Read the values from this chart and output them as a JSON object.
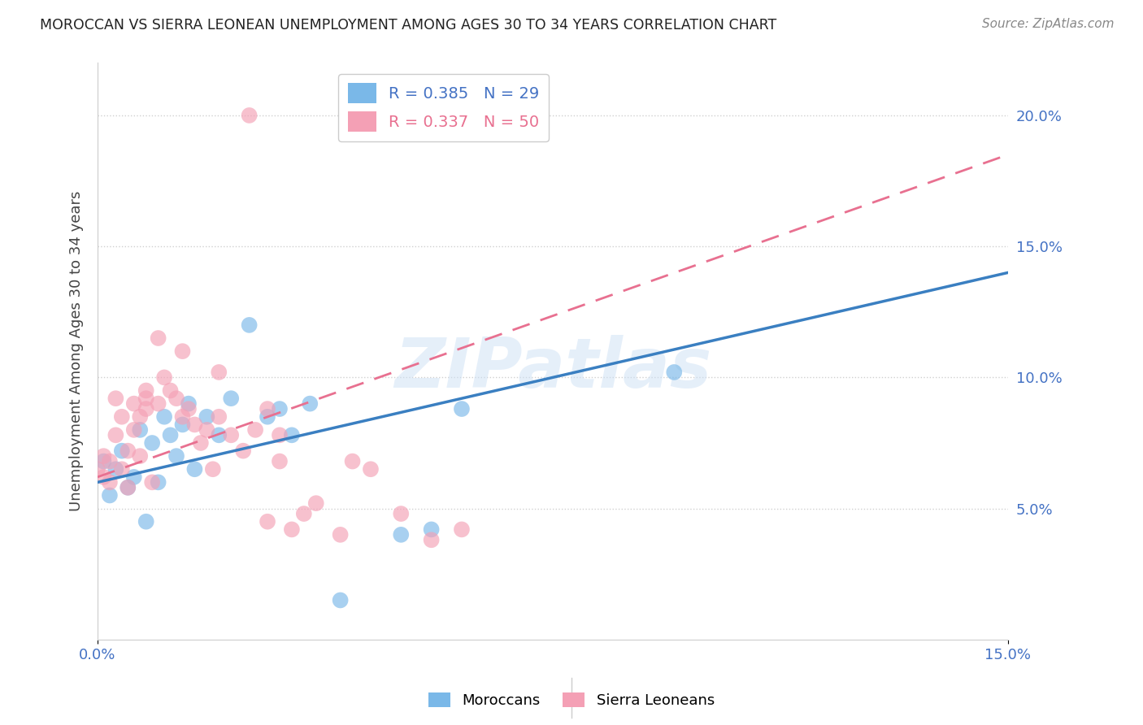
{
  "title": "MOROCCAN VS SIERRA LEONEAN UNEMPLOYMENT AMONG AGES 30 TO 34 YEARS CORRELATION CHART",
  "source": "Source: ZipAtlas.com",
  "ylabel": "Unemployment Among Ages 30 to 34 years",
  "xlim": [
    0.0,
    0.15
  ],
  "ylim": [
    0.0,
    0.22
  ],
  "xticks": [
    0.0,
    0.15
  ],
  "xtick_labels": [
    "0.0%",
    "15.0%"
  ],
  "yticks_right": [
    0.05,
    0.1,
    0.15,
    0.2
  ],
  "moroccan_color": "#7ab8e8",
  "sierraleonean_color": "#f4a0b5",
  "moroccan_line_color": "#3a7fc1",
  "sierraleonean_line_color": "#e87090",
  "moroccan_R": 0.385,
  "moroccan_N": 29,
  "sierraleonean_R": 0.337,
  "sierraleonean_N": 50,
  "legend_label_moroccan": "Moroccans",
  "legend_label_sierraleonean": "Sierra Leoneans",
  "watermark": "ZIPatlas",
  "moroccan_line_y0": 0.06,
  "moroccan_line_y1": 0.14,
  "sierraleonean_line_y0": 0.062,
  "sierraleonean_line_y1": 0.185,
  "moroccan_x": [
    0.001,
    0.002,
    0.003,
    0.004,
    0.005,
    0.006,
    0.007,
    0.008,
    0.009,
    0.01,
    0.011,
    0.012,
    0.013,
    0.014,
    0.015,
    0.016,
    0.018,
    0.02,
    0.022,
    0.025,
    0.028,
    0.03,
    0.032,
    0.035,
    0.05,
    0.055,
    0.095,
    0.06,
    0.04
  ],
  "moroccan_y": [
    0.068,
    0.055,
    0.065,
    0.072,
    0.058,
    0.062,
    0.08,
    0.045,
    0.075,
    0.06,
    0.085,
    0.078,
    0.07,
    0.082,
    0.09,
    0.065,
    0.085,
    0.078,
    0.092,
    0.12,
    0.085,
    0.088,
    0.078,
    0.09,
    0.04,
    0.042,
    0.102,
    0.088,
    0.015
  ],
  "sierraleonean_x": [
    0.0,
    0.001,
    0.001,
    0.002,
    0.002,
    0.003,
    0.003,
    0.004,
    0.004,
    0.005,
    0.005,
    0.006,
    0.006,
    0.007,
    0.007,
    0.008,
    0.008,
    0.009,
    0.01,
    0.011,
    0.012,
    0.013,
    0.014,
    0.015,
    0.016,
    0.017,
    0.018,
    0.019,
    0.02,
    0.022,
    0.024,
    0.026,
    0.028,
    0.03,
    0.032,
    0.034,
    0.036,
    0.04,
    0.042,
    0.045,
    0.05,
    0.055,
    0.06,
    0.03,
    0.028,
    0.02,
    0.014,
    0.01,
    0.008,
    0.025
  ],
  "sierraleonean_y": [
    0.065,
    0.062,
    0.07,
    0.06,
    0.068,
    0.092,
    0.078,
    0.085,
    0.065,
    0.072,
    0.058,
    0.08,
    0.09,
    0.07,
    0.085,
    0.088,
    0.095,
    0.06,
    0.09,
    0.1,
    0.095,
    0.092,
    0.085,
    0.088,
    0.082,
    0.075,
    0.08,
    0.065,
    0.085,
    0.078,
    0.072,
    0.08,
    0.088,
    0.078,
    0.042,
    0.048,
    0.052,
    0.04,
    0.068,
    0.065,
    0.048,
    0.038,
    0.042,
    0.068,
    0.045,
    0.102,
    0.11,
    0.115,
    0.092,
    0.2
  ]
}
